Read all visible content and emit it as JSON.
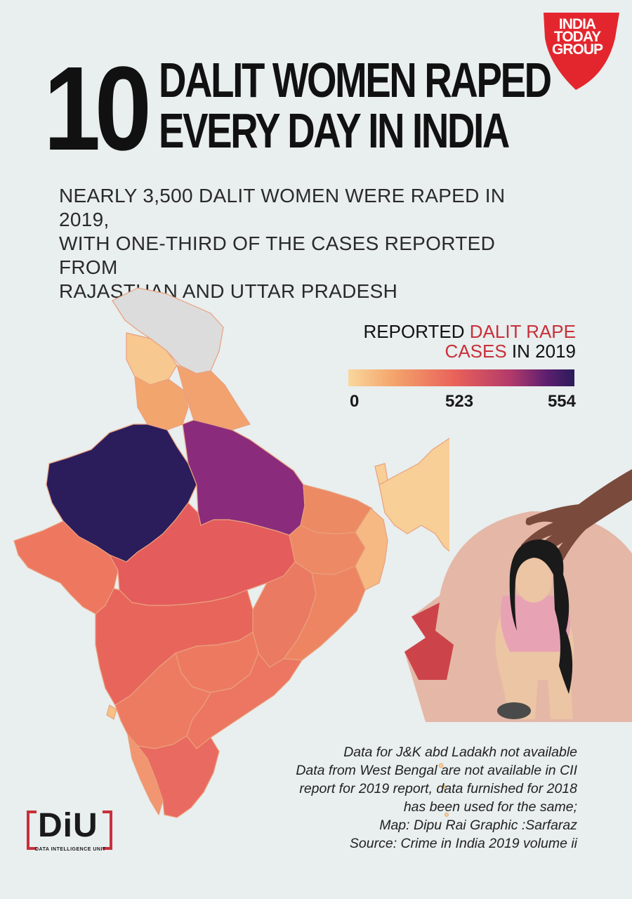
{
  "headline": {
    "number": "10",
    "line1": "DALIT WOMEN RAPED",
    "line2": "EVERY DAY IN INDIA"
  },
  "subtitle": [
    "NEARLY 3,500 DALIT WOMEN WERE RAPED IN 2019,",
    "WITH ONE-THIRD OF THE CASES REPORTED FROM",
    "RAJASTHAN AND UTTAR PRADESH"
  ],
  "logo": {
    "line1": "INDIA",
    "line2": "TODAY",
    "line3": "GROUP",
    "color": "#e3262e"
  },
  "legend": {
    "title_pre": "REPORTED ",
    "title_highlight1": "DALIT RAPE",
    "title_highlight2": "CASES",
    "title_post": " IN 2019",
    "min_label": "0",
    "mid_label": "523",
    "max_label": "554",
    "colors": [
      "#f9d79d",
      "#f4a46b",
      "#e8605a",
      "#b13a6b",
      "#5c1e6f",
      "#2a1c5a"
    ]
  },
  "notes": [
    "Data for J&K abd Ladakh not available",
    "Data from West Bengal are not available in CII",
    "report for 2019 report, data furnished for 2018",
    "has been used for the same;",
    "Map: Dipu Rai Graphic :Sarfaraz",
    "Source: Crime in India 2019 volume ii"
  ],
  "diu": {
    "mark": "DiU",
    "label": "DATA INTELLIGENCE UNIT"
  },
  "map_regions": {
    "rajasthan": {
      "color": "#2b1d5c",
      "category": "highest (554)"
    },
    "uttar_pradesh": {
      "color": "#8a2c7b",
      "category": "high (523)"
    },
    "no_data": {
      "color": "#dcdcdc",
      "category": "J&K and Ladakh - not available"
    }
  }
}
